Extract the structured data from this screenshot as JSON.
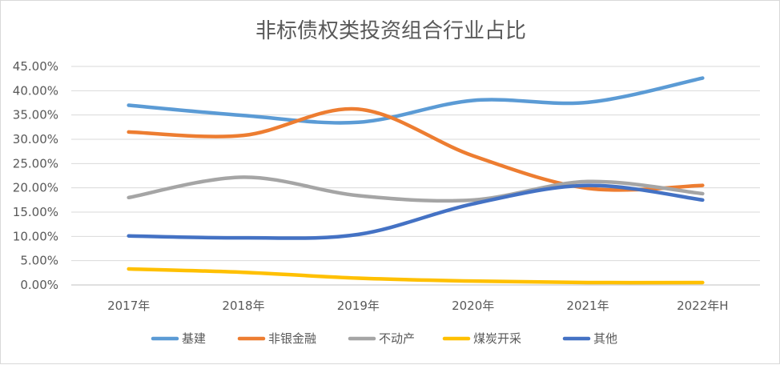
{
  "chart_data": {
    "type": "line",
    "title": "非标债权类投资组合行业占比",
    "xlabel": "",
    "ylabel": "",
    "categories": [
      "2017年",
      "2018年",
      "2019年",
      "2020年",
      "2021年",
      "2022年H"
    ],
    "y_ticks": [
      "0.00%",
      "5.00%",
      "10.00%",
      "15.00%",
      "20.00%",
      "25.00%",
      "30.00%",
      "35.00%",
      "40.00%",
      "45.00%"
    ],
    "ylim": [
      0,
      45
    ],
    "grid": "horizontal",
    "legend_position": "bottom",
    "smooth": true,
    "series": [
      {
        "name": "基建",
        "color": "#5b9bd5",
        "values": [
          37.0,
          34.9,
          33.5,
          38.0,
          37.6,
          42.6
        ]
      },
      {
        "name": "非银金融",
        "color": "#ed7d31",
        "values": [
          31.5,
          30.8,
          36.2,
          26.6,
          19.9,
          20.5
        ]
      },
      {
        "name": "不动产",
        "color": "#a5a5a5",
        "values": [
          18.0,
          22.2,
          18.4,
          17.5,
          21.3,
          18.8
        ]
      },
      {
        "name": "煤炭开采",
        "color": "#ffc000",
        "values": [
          3.3,
          2.6,
          1.4,
          0.8,
          0.5,
          0.5
        ]
      },
      {
        "name": "其他",
        "color": "#4472c4",
        "values": [
          10.1,
          9.7,
          10.4,
          16.7,
          20.5,
          17.5
        ]
      }
    ]
  }
}
